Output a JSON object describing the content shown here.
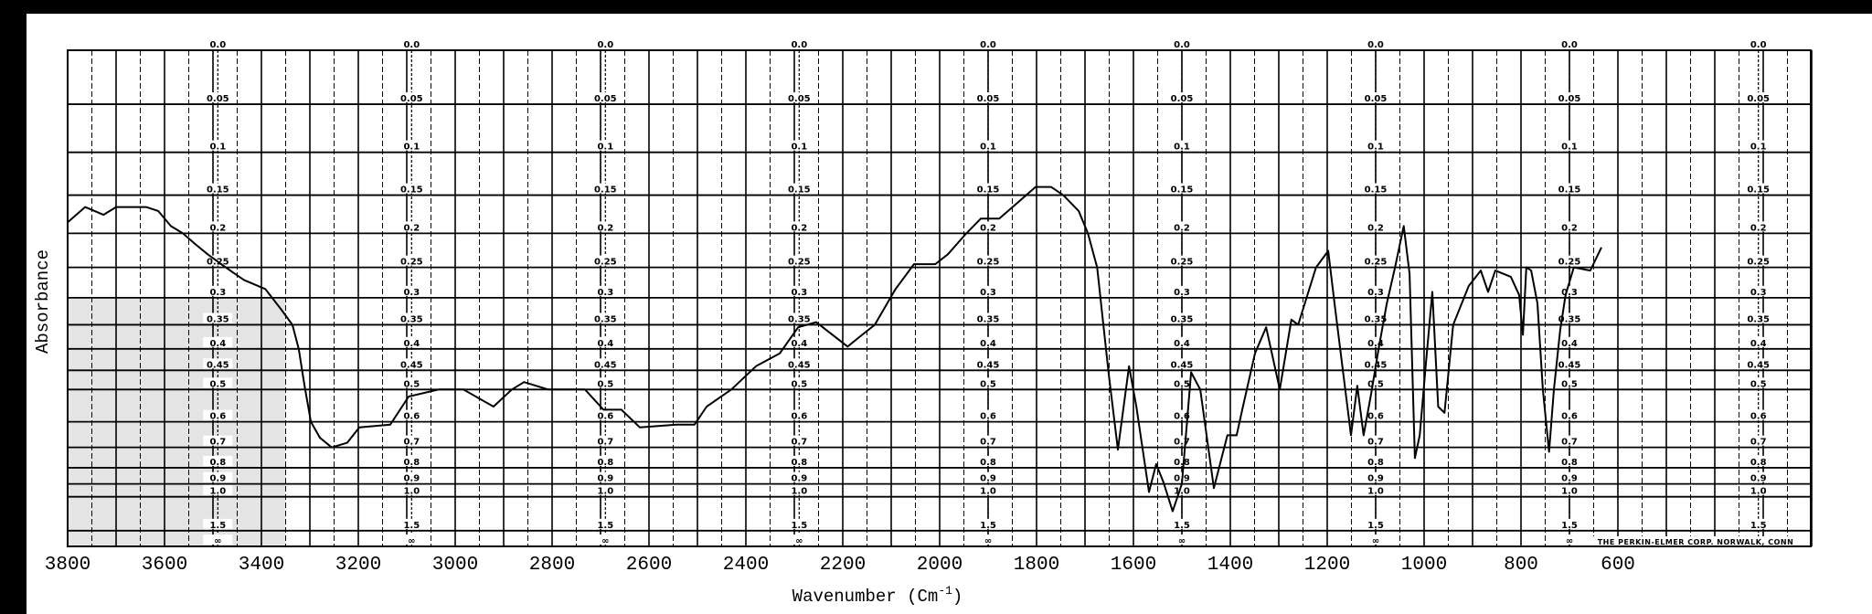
{
  "chart_data": {
    "type": "line",
    "title": "",
    "xlabel": "Wavenumber (Cm",
    "xlabel_sup": "-1",
    "xlabel_close": ")",
    "ylabel": "Absorbance",
    "xlim": [
      3800,
      200
    ],
    "ylim": [
      0.0,
      "∞"
    ],
    "y_scale": "log (linear in transmittance)",
    "grid": true,
    "x_ticks": [
      3800,
      3600,
      3400,
      3200,
      3000,
      2800,
      2600,
      2400,
      2200,
      2000,
      1800,
      1600,
      1400,
      1200,
      1000,
      800,
      600
    ],
    "x_tick_labels": [
      "3800",
      "3600",
      "3400",
      "3200",
      "3000",
      "2800",
      "2600",
      "2400",
      "2200",
      "2000",
      "1800",
      "1600",
      "1400",
      "1200",
      "1000",
      "800",
      "600"
    ],
    "absorbance_grid_values": [
      0.0,
      0.05,
      0.1,
      0.15,
      0.2,
      0.25,
      0.3,
      0.35,
      0.4,
      0.45,
      0.5,
      0.6,
      0.7,
      0.8,
      0.9,
      1.0,
      1.5
    ],
    "absorbance_grid_labels": [
      "0.0",
      "0.05",
      "0.1",
      "0.15",
      "0.2",
      "0.25",
      "0.3",
      "0.35",
      "0.4",
      "0.45",
      "0.5",
      "0.6",
      "0.7",
      "0.8",
      "0.9",
      "1.0",
      "1.5",
      "∞"
    ],
    "absorbance_label_columns_wavenumber": [
      3490,
      3090,
      2690,
      2290,
      1900,
      1500,
      1100,
      700,
      310
    ],
    "footnote": "THE PERKIN-ELMER CORP. NORWALK, CONN",
    "series": [
      {
        "name": "spectrum",
        "points": [
          [
            3800,
            0.185
          ],
          [
            3764,
            0.165
          ],
          [
            3726,
            0.175
          ],
          [
            3700,
            0.165
          ],
          [
            3638,
            0.165
          ],
          [
            3613,
            0.17
          ],
          [
            3587,
            0.19
          ],
          [
            3562,
            0.2
          ],
          [
            3537,
            0.215
          ],
          [
            3511,
            0.23
          ],
          [
            3474,
            0.25
          ],
          [
            3436,
            0.27
          ],
          [
            3392,
            0.285
          ],
          [
            3360,
            0.32
          ],
          [
            3336,
            0.35
          ],
          [
            3323,
            0.4
          ],
          [
            3311,
            0.49
          ],
          [
            3298,
            0.6
          ],
          [
            3279,
            0.66
          ],
          [
            3255,
            0.7
          ],
          [
            3223,
            0.68
          ],
          [
            3198,
            0.62
          ],
          [
            3134,
            0.61
          ],
          [
            3096,
            0.52
          ],
          [
            3034,
            0.5
          ],
          [
            2983,
            0.5
          ],
          [
            2921,
            0.55
          ],
          [
            2883,
            0.5
          ],
          [
            2858,
            0.48
          ],
          [
            2808,
            0.5
          ],
          [
            2732,
            0.5
          ],
          [
            2694,
            0.56
          ],
          [
            2657,
            0.56
          ],
          [
            2619,
            0.62
          ],
          [
            2543,
            0.61
          ],
          [
            2506,
            0.61
          ],
          [
            2481,
            0.55
          ],
          [
            2430,
            0.5
          ],
          [
            2379,
            0.44
          ],
          [
            2330,
            0.41
          ],
          [
            2292,
            0.355
          ],
          [
            2255,
            0.345
          ],
          [
            2190,
            0.395
          ],
          [
            2166,
            0.375
          ],
          [
            2134,
            0.35
          ],
          [
            2091,
            0.285
          ],
          [
            2053,
            0.245
          ],
          [
            2009,
            0.245
          ],
          [
            1983,
            0.23
          ],
          [
            1945,
            0.2
          ],
          [
            1915,
            0.18
          ],
          [
            1877,
            0.18
          ],
          [
            1840,
            0.16
          ],
          [
            1802,
            0.14
          ],
          [
            1770,
            0.14
          ],
          [
            1745,
            0.15
          ],
          [
            1713,
            0.17
          ],
          [
            1694,
            0.2
          ],
          [
            1675,
            0.25
          ],
          [
            1662,
            0.35
          ],
          [
            1651,
            0.46
          ],
          [
            1632,
            0.71
          ],
          [
            1609,
            0.44
          ],
          [
            1594,
            0.55
          ],
          [
            1568,
            0.96
          ],
          [
            1553,
            0.78
          ],
          [
            1538,
            0.89
          ],
          [
            1519,
            1.15
          ],
          [
            1500,
            0.9
          ],
          [
            1481,
            0.455
          ],
          [
            1462,
            0.5
          ],
          [
            1434,
            0.93
          ],
          [
            1406,
            0.65
          ],
          [
            1387,
            0.65
          ],
          [
            1374,
            0.55
          ],
          [
            1349,
            0.41
          ],
          [
            1326,
            0.355
          ],
          [
            1298,
            0.5
          ],
          [
            1274,
            0.34
          ],
          [
            1260,
            0.35
          ],
          [
            1223,
            0.25
          ],
          [
            1198,
            0.225
          ],
          [
            1185,
            0.31
          ],
          [
            1172,
            0.41
          ],
          [
            1151,
            0.65
          ],
          [
            1138,
            0.49
          ],
          [
            1125,
            0.65
          ],
          [
            1109,
            0.51
          ],
          [
            1094,
            0.4
          ],
          [
            1077,
            0.31
          ],
          [
            1060,
            0.25
          ],
          [
            1042,
            0.19
          ],
          [
            1030,
            0.26
          ],
          [
            1019,
            0.75
          ],
          [
            1009,
            0.65
          ],
          [
            996,
            0.43
          ],
          [
            983,
            0.29
          ],
          [
            971,
            0.55
          ],
          [
            958,
            0.57
          ],
          [
            940,
            0.35
          ],
          [
            908,
            0.28
          ],
          [
            883,
            0.255
          ],
          [
            868,
            0.29
          ],
          [
            853,
            0.255
          ],
          [
            821,
            0.265
          ],
          [
            804,
            0.295
          ],
          [
            796,
            0.37
          ],
          [
            789,
            0.25
          ],
          [
            779,
            0.255
          ],
          [
            766,
            0.31
          ],
          [
            755,
            0.5
          ],
          [
            742,
            0.72
          ],
          [
            732,
            0.5
          ],
          [
            719,
            0.36
          ],
          [
            708,
            0.295
          ],
          [
            691,
            0.25
          ],
          [
            657,
            0.255
          ],
          [
            634,
            0.22
          ]
        ]
      }
    ]
  }
}
